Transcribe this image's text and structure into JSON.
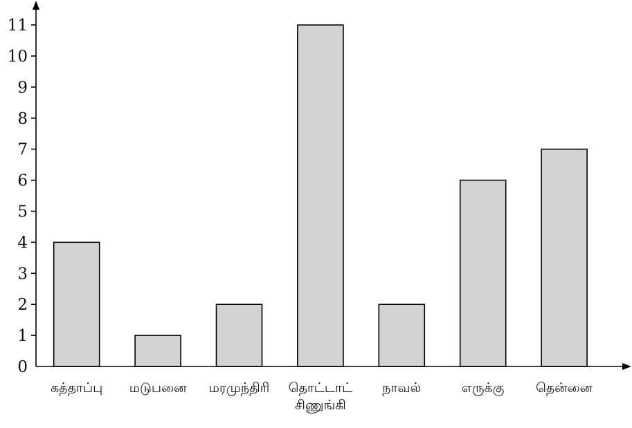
{
  "chart_data": {
    "type": "bar",
    "categories": [
      [
        "கத்தாப்பு"
      ],
      [
        "மடுபனை"
      ],
      [
        "மரமுந்திரி"
      ],
      [
        "தொட்டாட்",
        "சிணுங்கி"
      ],
      [
        "நாவல்"
      ],
      [
        "எருக்கு"
      ],
      [
        "தென்னை"
      ]
    ],
    "values": [
      4,
      1,
      2,
      11,
      2,
      6,
      7
    ],
    "yticks": [
      0,
      1,
      2,
      3,
      4,
      5,
      6,
      7,
      8,
      9,
      10,
      11
    ],
    "ylim": [
      0,
      11
    ],
    "grid": false,
    "colors": {
      "bar_fill": "#d3d3d3",
      "bar_stroke": "#000000",
      "axis": "#000000"
    }
  }
}
